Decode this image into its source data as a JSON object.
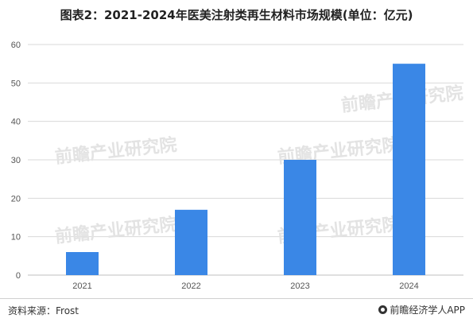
{
  "header": {
    "title": "图表2：2021-2024年医美注射类再生材料市场规模(单位：亿元)"
  },
  "chart_data": {
    "type": "bar",
    "categories": [
      "2021",
      "2022",
      "2023",
      "2024"
    ],
    "values": [
      6,
      17,
      30,
      55
    ],
    "title": "图表2：2021-2024年医美注射类再生材料市场规模(单位：亿元)",
    "xlabel": "",
    "ylabel": "",
    "ylim": [
      0,
      60
    ],
    "yticks": [
      0,
      10,
      20,
      30,
      40,
      50,
      60
    ],
    "grid": true,
    "legend": "none",
    "bar_color": "#3a87e6",
    "grid_color": "#d9d9d9"
  },
  "watermark": {
    "text": "前瞻产业研究院"
  },
  "footer": {
    "source": "资料来源：Frost",
    "brand": "前瞻经济学人APP",
    "brand_icon": "qianzhan-logo-icon"
  }
}
